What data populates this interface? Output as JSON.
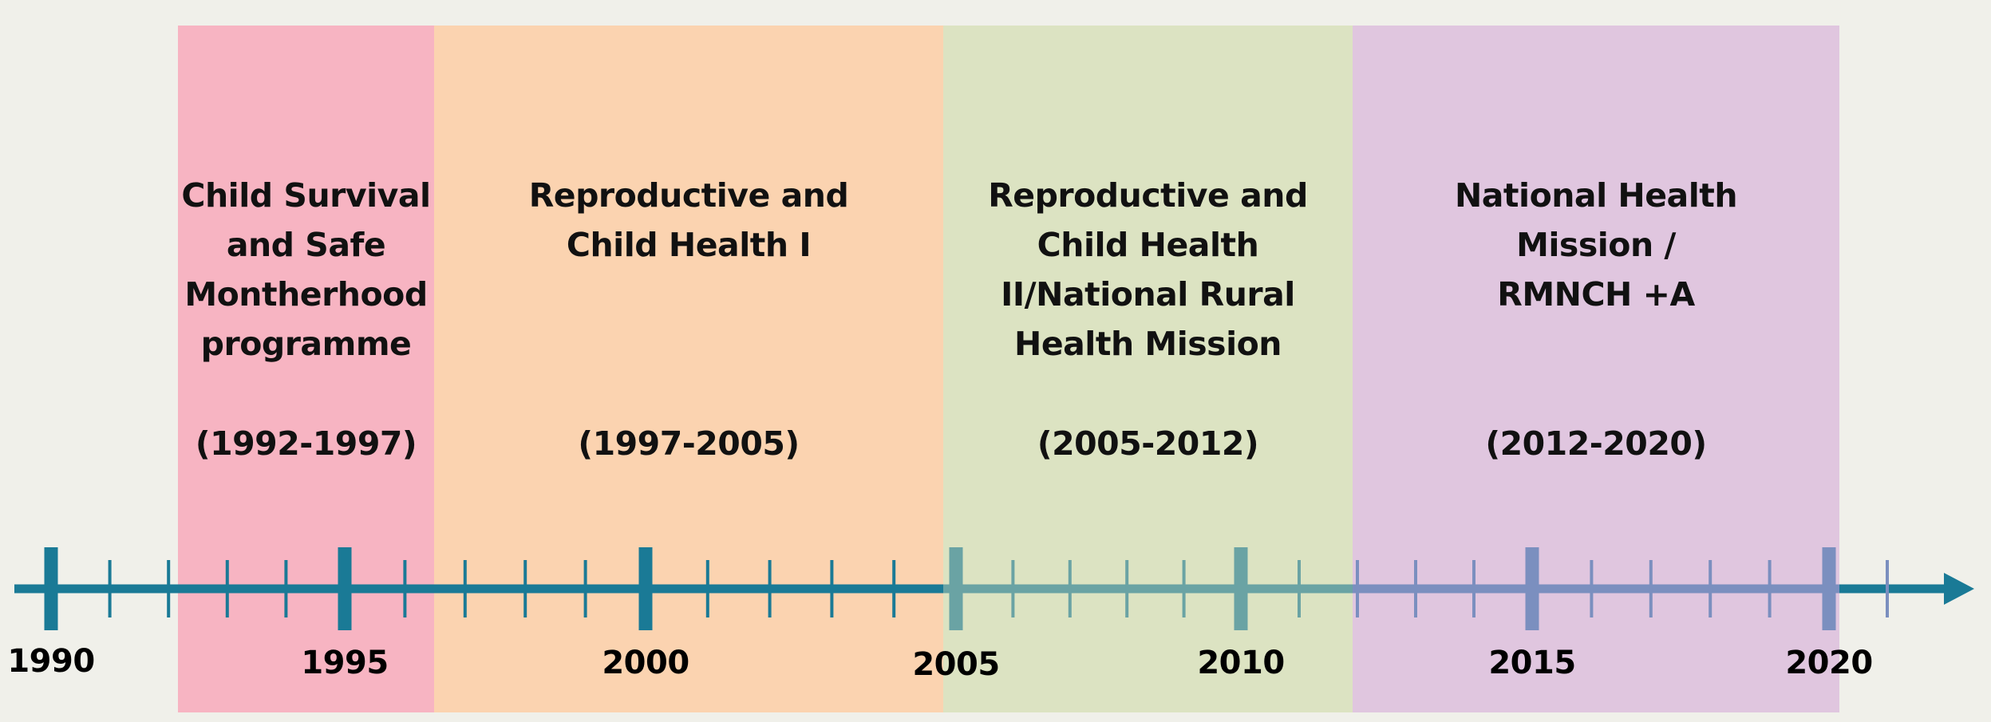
{
  "phases": [
    {
      "title": "Child Survival\nand Safe\nMontherhood\nprogramme",
      "period": "(1992-1997)",
      "start": 1992,
      "end": 1997,
      "color": "#f7b4c2"
    },
    {
      "title": "Reproductive and\nChild Health I",
      "period": "(1997-2005)",
      "start": 1997,
      "end": 2005,
      "color": "#fbd3b0"
    },
    {
      "title": "Reproductive and\nChild Health\nII/National Rural\nHealth Mission",
      "period": "(2005-2012)",
      "start": 2005,
      "end": 2012,
      "color": "#dce3c2"
    },
    {
      "title": "National Health\nMission /\nRMNCH +A",
      "period": "(2012-2020)",
      "start": 2012,
      "end": 2020,
      "color": "#e0c6df"
    }
  ],
  "axis": {
    "start_year": 1990,
    "end_year": 2020,
    "labels": [
      "1990",
      "1995",
      "2000",
      "2005",
      "2010",
      "2015",
      "2020"
    ],
    "color": "#1a7a96"
  }
}
